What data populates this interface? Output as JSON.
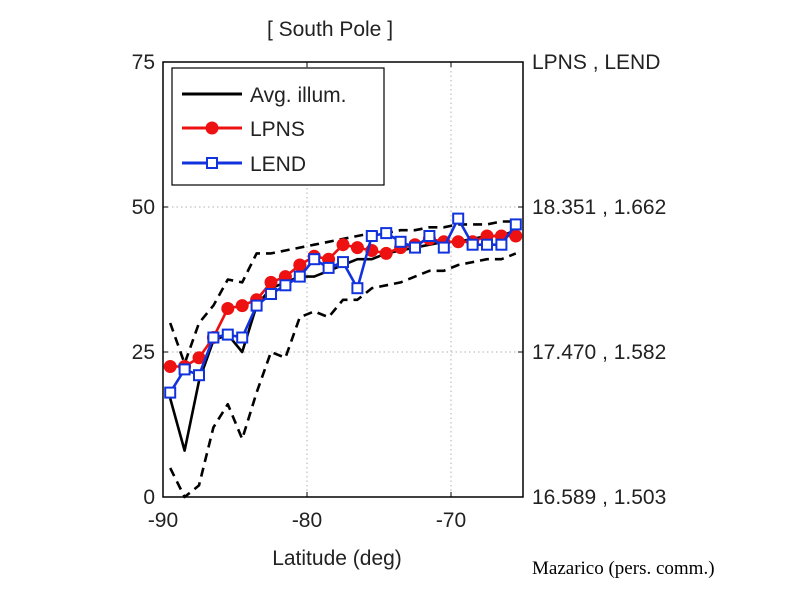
{
  "chart_data": {
    "type": "line",
    "title": "[ South Pole ]",
    "xlabel": "Latitude (deg)",
    "ylabel": "",
    "xlim": [
      -90,
      -65
    ],
    "ylim": [
      0,
      75
    ],
    "xticks": [
      -90,
      -80,
      -70
    ],
    "yticks": [
      0,
      25,
      50,
      75
    ],
    "grid": true,
    "right_axis_title": "LPNS , LEND",
    "right_axis_labels": [
      {
        "y": 0,
        "text": "16.589 , 1.503"
      },
      {
        "y": 25,
        "text": "17.470 , 1.582"
      },
      {
        "y": 50,
        "text": "18.351 , 1.662"
      }
    ],
    "legend_position": "top-left",
    "series": [
      {
        "name": "Avg. illum.",
        "style": "solid",
        "color": "#000000",
        "marker": "none",
        "x": [
          -89.5,
          -88.5,
          -87.5,
          -86.5,
          -85.5,
          -84.5,
          -83.5,
          -82.5,
          -81.5,
          -80.5,
          -79.5,
          -78.5,
          -77.5,
          -76.5,
          -75.5,
          -74.5,
          -73.5,
          -72.5,
          -71.5,
          -70.5,
          -69.5,
          -68.5,
          -67.5,
          -66.5,
          -65.5
        ],
        "values": [
          17,
          8,
          20,
          27,
          28,
          25,
          33,
          36,
          37,
          38,
          38,
          39,
          40,
          41,
          41,
          42,
          42.5,
          43,
          43.5,
          44,
          44,
          44.5,
          45,
          45,
          46
        ]
      },
      {
        "name": "upper bound",
        "style": "dashed",
        "color": "#000000",
        "marker": "none",
        "in_legend": false,
        "x": [
          -89.5,
          -88.5,
          -87.5,
          -86.5,
          -85.5,
          -84.5,
          -83.5,
          -82.5,
          -81.5,
          -80.5,
          -79.5,
          -78.5,
          -77.5,
          -76.5,
          -75.5,
          -74.5,
          -73.5,
          -72.5,
          -71.5,
          -70.5,
          -69.5,
          -68.5,
          -67.5,
          -66.5,
          -65.5
        ],
        "values": [
          30,
          23,
          30,
          33,
          37.5,
          37,
          42,
          42,
          42.5,
          43,
          43.5,
          44,
          44.5,
          45,
          45.5,
          45.5,
          46,
          46,
          46.5,
          46.5,
          47,
          47,
          47,
          47.5,
          47.5
        ]
      },
      {
        "name": "lower bound",
        "style": "dashed",
        "color": "#000000",
        "marker": "none",
        "in_legend": false,
        "x": [
          -89.5,
          -88.5,
          -87.5,
          -86.5,
          -85.5,
          -84.5,
          -83.5,
          -82.5,
          -81.5,
          -80.5,
          -79.5,
          -78.5,
          -77.5,
          -76.5,
          -75.5,
          -74.5,
          -73.5,
          -72.5,
          -71.5,
          -70.5,
          -69.5,
          -68.5,
          -67.5,
          -66.5,
          -65.5
        ],
        "values": [
          5,
          0,
          2,
          12,
          16,
          10,
          18,
          25,
          24,
          31,
          32,
          31,
          34,
          34,
          36,
          36.5,
          37,
          38,
          39,
          39,
          40,
          40.5,
          41,
          41,
          42
        ]
      },
      {
        "name": "LPNS",
        "style": "solid",
        "color": "#ee1111",
        "marker": "filled-circle",
        "x": [
          -89.5,
          -88.5,
          -87.5,
          -86.5,
          -85.5,
          -84.5,
          -83.5,
          -82.5,
          -81.5,
          -80.5,
          -79.5,
          -78.5,
          -77.5,
          -76.5,
          -75.5,
          -74.5,
          -73.5,
          -72.5,
          -71.5,
          -70.5,
          -69.5,
          -68.5,
          -67.5,
          -66.5,
          -65.5
        ],
        "values": [
          22.5,
          22.5,
          24,
          27.5,
          32.5,
          33,
          34,
          37,
          38,
          40,
          41.5,
          41,
          43.5,
          43,
          42.5,
          42,
          43,
          43.5,
          44.5,
          44,
          44,
          44,
          45,
          45,
          45
        ]
      },
      {
        "name": "LEND",
        "style": "solid",
        "color": "#1133dd",
        "marker": "hollow-square",
        "x": [
          -89.5,
          -88.5,
          -87.5,
          -86.5,
          -85.5,
          -84.5,
          -83.5,
          -82.5,
          -81.5,
          -80.5,
          -79.5,
          -78.5,
          -77.5,
          -76.5,
          -75.5,
          -74.5,
          -73.5,
          -72.5,
          -71.5,
          -70.5,
          -69.5,
          -68.5,
          -67.5,
          -66.5,
          -65.5
        ],
        "values": [
          18,
          22,
          21,
          27.5,
          28,
          27.5,
          33,
          35,
          36.5,
          38,
          41,
          39.5,
          40.5,
          36,
          45,
          45.5,
          44,
          43,
          45,
          43,
          48,
          43.5,
          43.5,
          43.5,
          47
        ]
      }
    ],
    "legend": [
      "Avg. illum.",
      "LPNS",
      "LEND"
    ]
  },
  "credit": "Mazarico (pers. comm.)",
  "colors": {
    "axis": "#000000",
    "grid": "#b0b0b0",
    "lpns": "#ee1111",
    "lend": "#1133dd"
  }
}
